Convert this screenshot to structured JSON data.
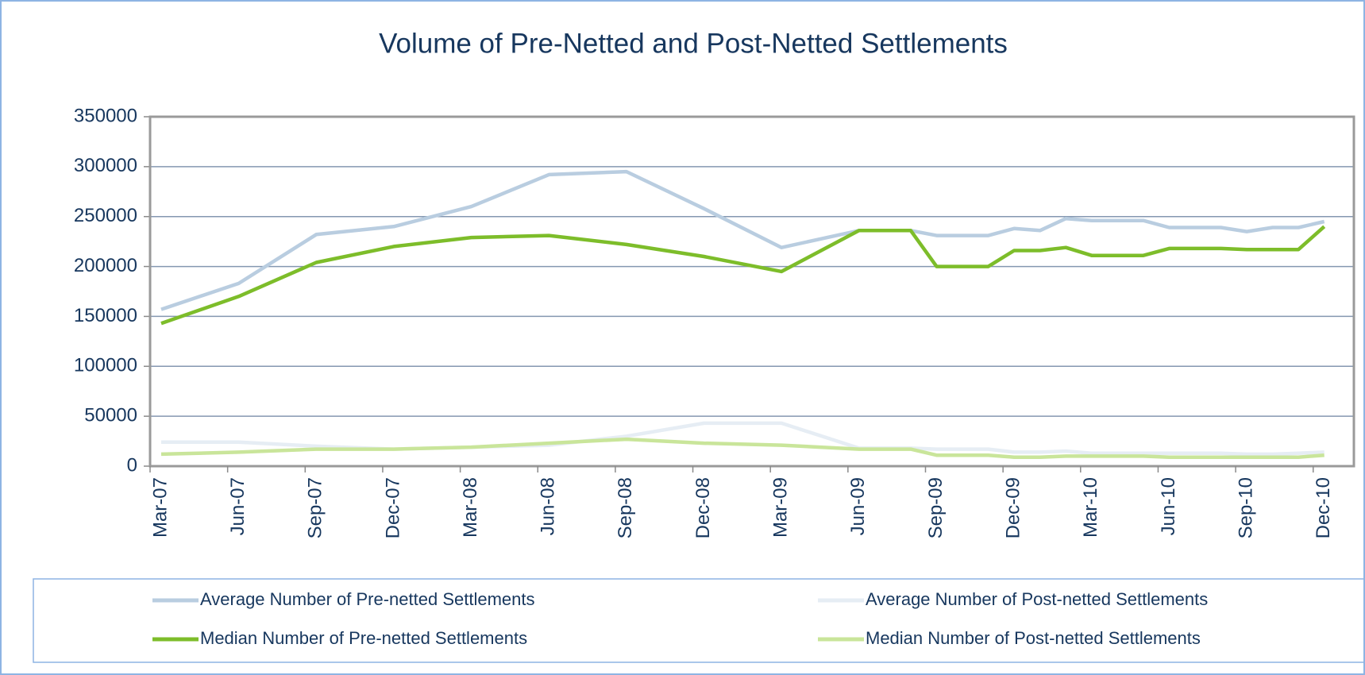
{
  "chart_data": {
    "type": "line",
    "title": "Volume of Pre-Netted and Post-Netted Settlements",
    "categories": [
      "Mar-07",
      null,
      null,
      "Jun-07",
      null,
      null,
      "Sep-07",
      null,
      null,
      "Dec-07",
      null,
      null,
      "Mar-08",
      null,
      null,
      "Jun-08",
      null,
      null,
      "Sep-08",
      null,
      null,
      "Dec-08",
      null,
      null,
      "Mar-09",
      null,
      null,
      "Jun-09",
      null,
      null,
      "Sep-09",
      null,
      null,
      "Dec-09",
      null,
      null,
      "Mar-10",
      null,
      null,
      "Jun-10",
      null,
      null,
      "Sep-10",
      null,
      null,
      "Dec-10"
    ],
    "series": [
      {
        "name": "Average Number of Pre-netted Settlements",
        "color": "#b9cde0",
        "values": [
          157000,
          null,
          null,
          183000,
          null,
          null,
          232000,
          null,
          null,
          240000,
          null,
          null,
          260000,
          null,
          null,
          292000,
          null,
          null,
          295000,
          null,
          null,
          258000,
          null,
          null,
          219000,
          null,
          null,
          236000,
          236000,
          236000,
          231000,
          231000,
          231000,
          238000,
          236000,
          248000,
          246000,
          246000,
          246000,
          239000,
          239000,
          239000,
          235000,
          239000,
          239000,
          245000
        ]
      },
      {
        "name": "Average Number of Post-netted Settlements",
        "color": "#e6edf4",
        "values": [
          24000,
          null,
          null,
          24000,
          null,
          null,
          20000,
          null,
          null,
          17000,
          null,
          null,
          19000,
          null,
          null,
          21000,
          null,
          null,
          30000,
          null,
          null,
          43000,
          null,
          null,
          43000,
          null,
          null,
          18000,
          18000,
          18000,
          17000,
          17000,
          17000,
          14000,
          14000,
          15000,
          13000,
          13000,
          13000,
          13000,
          13000,
          13000,
          12000,
          12000,
          13000,
          14000
        ]
      },
      {
        "name": "Median Number of Pre-netted Settlements",
        "color": "#7dbd2a",
        "values": [
          143000,
          null,
          null,
          170000,
          null,
          null,
          204000,
          null,
          null,
          220000,
          null,
          null,
          229000,
          null,
          null,
          231000,
          null,
          null,
          222000,
          null,
          null,
          210000,
          null,
          null,
          195000,
          null,
          null,
          236000,
          236000,
          236000,
          200000,
          200000,
          200000,
          216000,
          216000,
          219000,
          211000,
          211000,
          211000,
          218000,
          218000,
          218000,
          217000,
          217000,
          217000,
          240000
        ]
      },
      {
        "name": "Median Number of Post-netted Settlements",
        "color": "#c9e59a",
        "values": [
          12000,
          null,
          null,
          14000,
          null,
          null,
          17000,
          null,
          null,
          17000,
          null,
          null,
          19000,
          null,
          null,
          23000,
          null,
          null,
          27000,
          null,
          null,
          23000,
          null,
          null,
          21000,
          null,
          null,
          17000,
          17000,
          17000,
          11000,
          11000,
          11000,
          9000,
          9000,
          10000,
          10000,
          10000,
          10000,
          9000,
          9000,
          9000,
          9000,
          9000,
          9000,
          11000
        ]
      }
    ],
    "ylim": [
      0,
      350000
    ],
    "yticks": [
      0,
      50000,
      100000,
      150000,
      200000,
      250000,
      300000,
      350000
    ],
    "grid": true,
    "legend": "bottom"
  }
}
